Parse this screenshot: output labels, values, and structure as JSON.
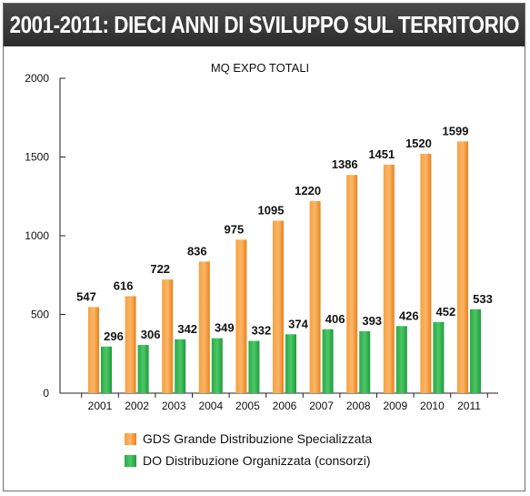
{
  "header": {
    "title": "2001-2011: DIECI ANNI DI SVILUPPO SUL TERRITORIO"
  },
  "chart_data": {
    "type": "bar",
    "title": "MQ EXPO TOTALI",
    "categories": [
      "2001",
      "2002",
      "2003",
      "2004",
      "2005",
      "2006",
      "2007",
      "2008",
      "2009",
      "2010",
      "2011"
    ],
    "series": [
      {
        "name": "GDS Grande Distribuzione Specializzata",
        "color": "#f7941d",
        "values": [
          547,
          616,
          722,
          836,
          975,
          1095,
          1220,
          1386,
          1451,
          1520,
          1599
        ]
      },
      {
        "name": "DO Distribuzione Organizzata (consorzi)",
        "color": "#2db34a",
        "values": [
          296,
          306,
          342,
          349,
          332,
          374,
          406,
          393,
          426,
          452,
          533
        ]
      }
    ],
    "ylim": [
      0,
      2000
    ],
    "yticks": [
      0,
      500,
      1000,
      1500,
      2000
    ],
    "grid": false,
    "legend_position": "bottom"
  }
}
